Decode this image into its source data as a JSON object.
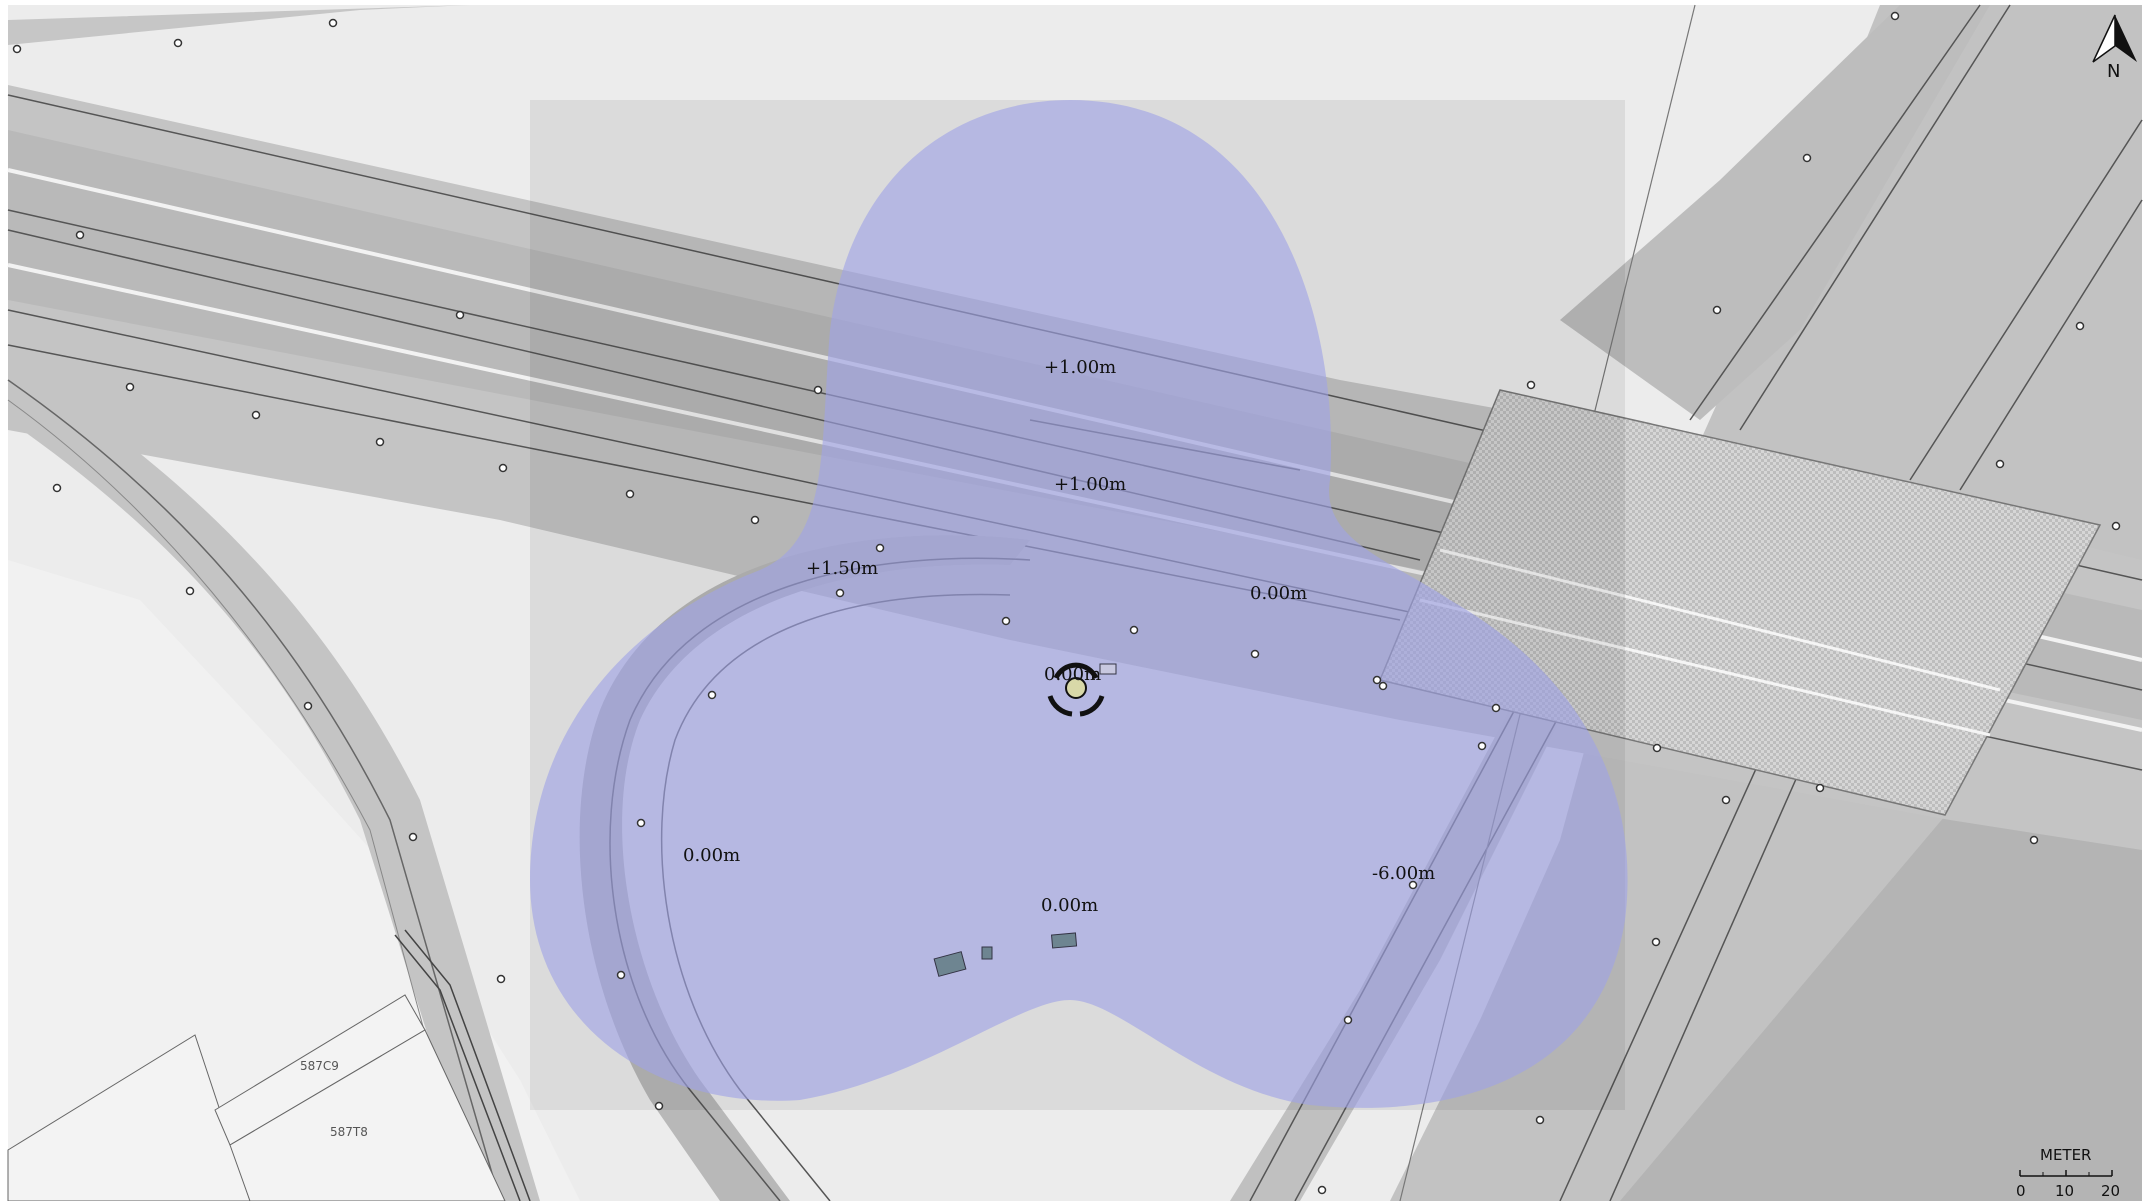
{
  "map": {
    "north_arrow": {
      "label": "N"
    },
    "scale_bar": {
      "unit": "METER",
      "ticks": [
        "0",
        "10",
        "20"
      ]
    },
    "coverage_color": "#9fa3e6",
    "elevation_labels": [
      {
        "id": "a",
        "text": "+1.00m"
      },
      {
        "id": "b",
        "text": "+1.00m"
      },
      {
        "id": "c",
        "text": "+1.50m"
      },
      {
        "id": "d",
        "text": "0.00m"
      },
      {
        "id": "e",
        "text": "0.00m"
      },
      {
        "id": "f",
        "text": "0.00m"
      },
      {
        "id": "g",
        "text": "0.00m"
      },
      {
        "id": "h",
        "text": "-6.00m"
      }
    ],
    "parcels": [
      {
        "id": "p1",
        "text": "587C9"
      },
      {
        "id": "p2",
        "text": "587T8"
      }
    ]
  }
}
